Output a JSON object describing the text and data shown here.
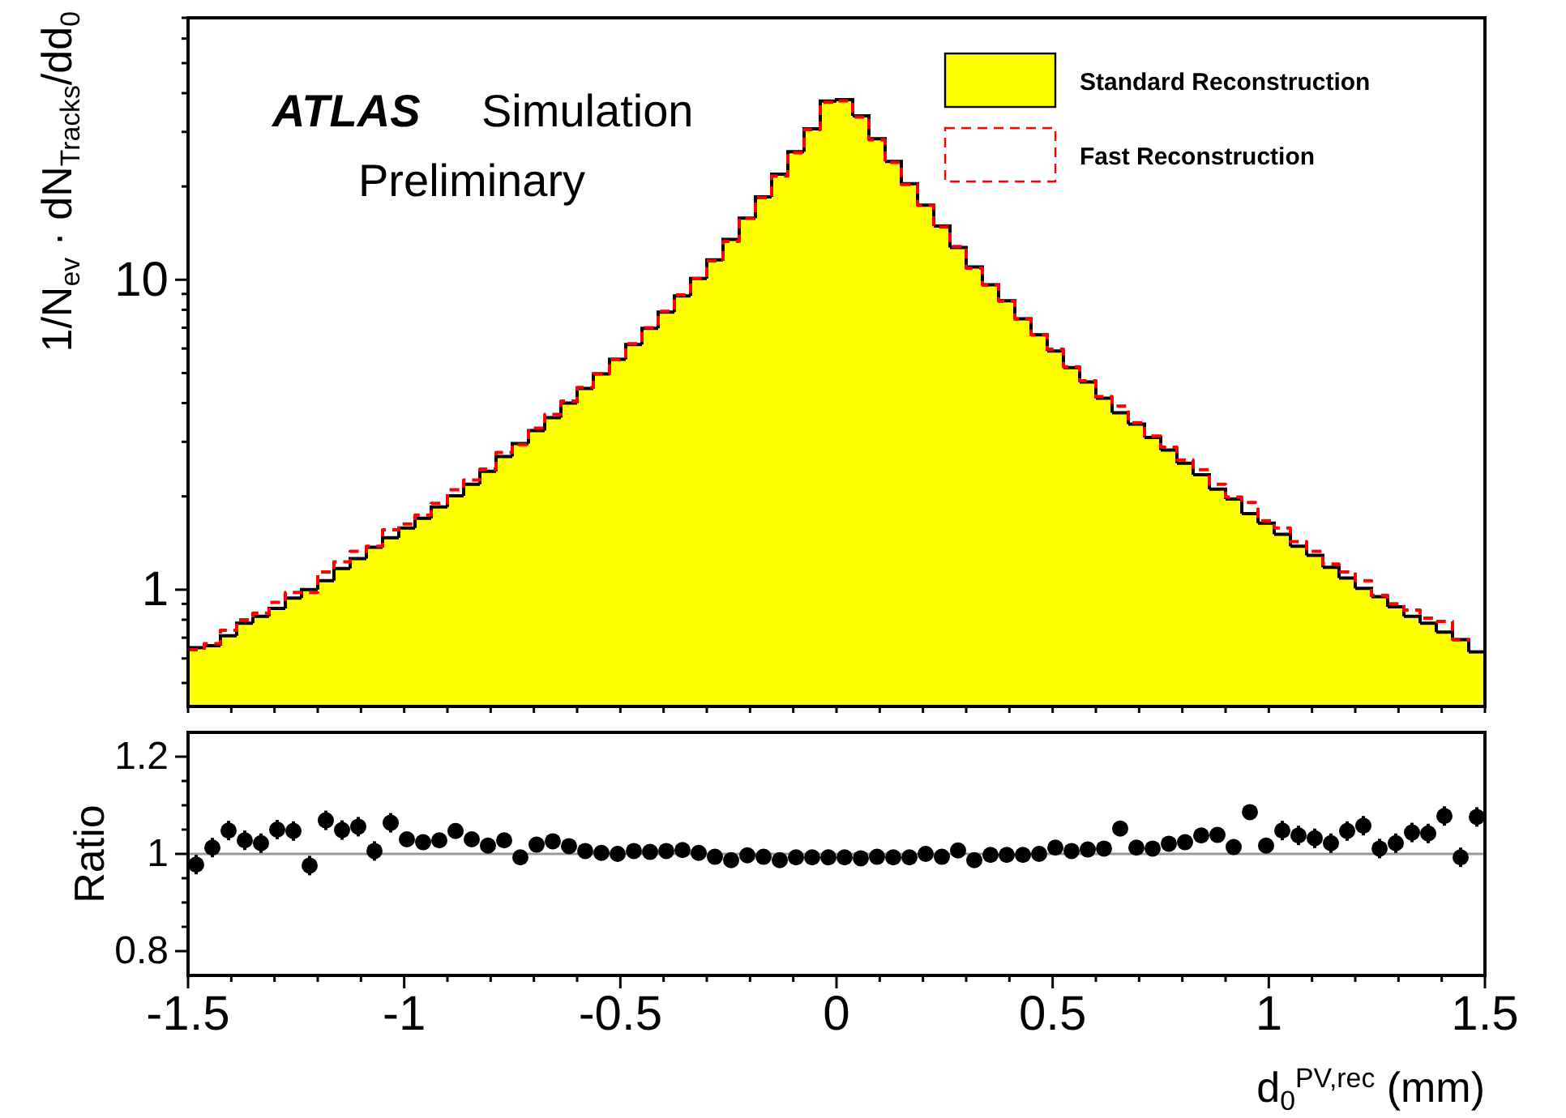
{
  "chart_data": [
    {
      "type": "histogram",
      "ylabel": "1/N$_{ev}$ · dN$_{Tracks}$/dd$_{0}$",
      "annotations": [
        "ATLAS",
        "Simulation",
        "Preliminary"
      ],
      "log": true,
      "legend": "top right",
      "tick_labels": "y",
      "xlim": [
        -1.5,
        1.5
      ],
      "xticks": [
        {
          "value": -1.5,
          "label": null
        },
        {
          "value": -1.4,
          "label": null
        },
        {
          "value": -1.3,
          "label": null
        },
        {
          "value": -1.2,
          "label": null
        },
        {
          "value": -1.1,
          "label": null
        },
        {
          "value": -1,
          "label": null
        },
        {
          "value": -0.9,
          "label": null
        },
        {
          "value": -0.8,
          "label": null
        },
        {
          "value": -0.7,
          "label": null
        },
        {
          "value": -0.6,
          "label": null
        },
        {
          "value": -0.5,
          "label": null
        },
        {
          "value": -0.4,
          "label": null
        },
        {
          "value": -0.3,
          "label": null
        },
        {
          "value": -0.2,
          "label": null
        },
        {
          "value": -0.1,
          "label": null
        },
        {
          "value": 0,
          "label": null
        },
        {
          "value": 0.1,
          "label": null
        },
        {
          "value": 0.2,
          "label": null
        },
        {
          "value": 0.3,
          "label": null
        },
        {
          "value": 0.4,
          "label": null
        },
        {
          "value": 0.5,
          "label": null
        },
        {
          "value": 0.6,
          "label": null
        },
        {
          "value": 0.7,
          "label": null
        },
        {
          "value": 0.8,
          "label": null
        },
        {
          "value": 0.9,
          "label": null
        },
        {
          "value": 1,
          "label": null
        },
        {
          "value": 1.1,
          "label": null
        },
        {
          "value": 1.2,
          "label": null
        },
        {
          "value": 1.3,
          "label": null
        },
        {
          "value": 1.4,
          "label": null
        },
        {
          "value": 1.5,
          "label": null
        }
      ],
      "ylim": [
        0.42,
        70
      ],
      "yticks": [
        {
          "value": 0.5,
          "label": null
        },
        {
          "value": 0.6,
          "label": null
        },
        {
          "value": 0.7,
          "label": null
        },
        {
          "value": 0.8,
          "label": null
        },
        {
          "value": 0.9,
          "label": null
        },
        1,
        {
          "value": 2,
          "label": null
        },
        {
          "value": 3,
          "label": null
        },
        {
          "value": 4,
          "label": null
        },
        {
          "value": 5,
          "label": null
        },
        {
          "value": 6,
          "label": null
        },
        {
          "value": 7,
          "label": null
        },
        {
          "value": 8,
          "label": null
        },
        {
          "value": 9,
          "label": null
        },
        10,
        {
          "value": 20,
          "label": null
        },
        {
          "value": 30,
          "label": null
        },
        {
          "value": 40,
          "label": null
        },
        {
          "value": 50,
          "label": null
        },
        {
          "value": 60,
          "label": null
        },
        {
          "value": 70,
          "label": null
        }
      ],
      "bins": [
        -1.5,
        -1.4625,
        -1.425,
        -1.3875,
        -1.35,
        -1.3125,
        -1.275,
        -1.2375,
        -1.2,
        -1.1625,
        -1.125,
        -1.0875,
        -1.05,
        -1.0125,
        -0.975,
        -0.9375,
        -0.9,
        -0.8625,
        -0.825,
        -0.7875,
        -0.75,
        -0.7125,
        -0.675,
        -0.6375,
        -0.6,
        -0.5625,
        -0.525,
        -0.4875,
        -0.45,
        -0.4125,
        -0.375,
        -0.3375,
        -0.3,
        -0.2625,
        -0.225,
        -0.1875,
        -0.15,
        -0.1125,
        -0.075,
        -0.0375,
        0,
        0.0375,
        0.075,
        0.1125,
        0.15,
        0.1875,
        0.225,
        0.2625,
        0.3,
        0.3375,
        0.375,
        0.4125,
        0.45,
        0.4875,
        0.525,
        0.5625,
        0.6,
        0.6375,
        0.675,
        0.7125,
        0.75,
        0.7875,
        0.825,
        0.8625,
        0.9,
        0.9375,
        0.975,
        1.0125,
        1.05,
        1.0875,
        1.125,
        1.1625,
        1.2,
        1.2375,
        1.275,
        1.3125,
        1.35,
        1.3875,
        1.425,
        1.4625,
        1.5
      ],
      "series": [
        {
          "name": "Standard Reconstruction",
          "type": "histogram",
          "color": "#ffff00",
          "values": [
            0.65,
            0.66,
            0.71,
            0.78,
            0.82,
            0.87,
            0.94,
            1.0,
            1.07,
            1.17,
            1.26,
            1.37,
            1.47,
            1.58,
            1.7,
            1.85,
            2.01,
            2.19,
            2.41,
            2.69,
            2.96,
            3.26,
            3.59,
            4.0,
            4.46,
            4.97,
            5.54,
            6.18,
            6.97,
            7.86,
            8.87,
            10.1,
            11.6,
            13.5,
            15.8,
            18.5,
            21.9,
            25.9,
            30.7,
            37.7,
            38.1,
            33.8,
            28.5,
            24.1,
            20.4,
            17.4,
            14.9,
            12.7,
            11.0,
            9.64,
            8.55,
            7.48,
            6.64,
            5.89,
            5.21,
            4.68,
            4.15,
            3.72,
            3.42,
            3.1,
            2.82,
            2.56,
            2.35,
            2.11,
            1.96,
            1.76,
            1.64,
            1.51,
            1.38,
            1.29,
            1.18,
            1.09,
            1.01,
            0.95,
            0.88,
            0.82,
            0.78,
            0.73,
            0.69,
            0.63
          ]
        },
        {
          "name": "Fast Reconstruction",
          "type": "step",
          "color": "#ff0000",
          "line_style": "dashed",
          "x": [
            -1.5,
            -1.4625,
            -1.425,
            -1.3875,
            -1.35,
            -1.3125,
            -1.275,
            -1.2375,
            -1.2,
            -1.1625,
            -1.125,
            -1.0875,
            -1.05,
            -1.0125,
            -0.975,
            -0.9375,
            -0.9,
            -0.8625,
            -0.825,
            -0.7875,
            -0.75,
            -0.7125,
            -0.675,
            -0.6375,
            -0.6,
            -0.5625,
            -0.525,
            -0.4875,
            -0.45,
            -0.4125,
            -0.375,
            -0.3375,
            -0.3,
            -0.2625,
            -0.225,
            -0.1875,
            -0.15,
            -0.1125,
            -0.075,
            -0.0375,
            0,
            0.0375,
            0.075,
            0.1125,
            0.15,
            0.1875,
            0.225,
            0.2625,
            0.3,
            0.3375,
            0.375,
            0.4125,
            0.45,
            0.4875,
            0.525,
            0.5625,
            0.6,
            0.6375,
            0.675,
            0.7125,
            0.75,
            0.7875,
            0.825,
            0.8625,
            0.9,
            0.9375,
            0.975,
            1.0125,
            1.05,
            1.0875,
            1.125,
            1.1625,
            1.2,
            1.2375,
            1.275,
            1.3125,
            1.35,
            1.3875,
            1.425,
            1.4625
          ],
          "values": [
            0.64,
            0.67,
            0.74,
            0.8,
            0.84,
            0.91,
            0.98,
            0.98,
            1.14,
            1.23,
            1.33,
            1.38,
            1.56,
            1.63,
            1.74,
            1.9,
            2.1,
            2.26,
            2.45,
            2.77,
            2.94,
            3.32,
            3.68,
            4.06,
            4.49,
            4.98,
            5.54,
            6.22,
            7.0,
            7.91,
            8.94,
            10.1,
            11.5,
            13.3,
            15.8,
            18.4,
            21.6,
            25.7,
            30.5,
            37.4,
            37.8,
            33.5,
            28.3,
            23.9,
            20.3,
            17.4,
            14.8,
            12.8,
            10.9,
            9.62,
            8.53,
            7.47,
            6.64,
            5.97,
            5.24,
            4.72,
            4.2,
            3.91,
            3.46,
            3.13,
            2.88,
            2.62,
            2.44,
            2.19,
            1.99,
            1.91,
            1.67,
            1.58,
            1.43,
            1.33,
            1.21,
            1.14,
            1.07,
            0.96,
            0.9,
            0.86,
            0.81,
            0.79,
            0.69,
            0.68
          ]
        }
      ]
    },
    {
      "type": "scatter",
      "xlabel": "d$_{0}$$^{PV,rec}$ (mm)",
      "ylabel": "Ratio",
      "marker": "circle",
      "xlim": [
        -1.5,
        1.5
      ],
      "xticks": [
        -1.5,
        {
          "value": -1.4,
          "label": null
        },
        {
          "value": -1.3,
          "label": null
        },
        {
          "value": -1.2,
          "label": null
        },
        {
          "value": -1.1,
          "label": null
        },
        -1,
        {
          "value": -0.9,
          "label": null
        },
        {
          "value": -0.8,
          "label": null
        },
        {
          "value": -0.7,
          "label": null
        },
        {
          "value": -0.6,
          "label": null
        },
        -0.5,
        {
          "value": -0.4,
          "label": null
        },
        {
          "value": -0.3,
          "label": null
        },
        {
          "value": -0.2,
          "label": null
        },
        {
          "value": -0.1,
          "label": null
        },
        0,
        {
          "value": 0.1,
          "label": null
        },
        {
          "value": 0.2,
          "label": null
        },
        {
          "value": 0.3,
          "label": null
        },
        {
          "value": 0.4,
          "label": null
        },
        0.5,
        {
          "value": 0.6,
          "label": null
        },
        {
          "value": 0.7,
          "label": null
        },
        {
          "value": 0.8,
          "label": null
        },
        {
          "value": 0.9,
          "label": null
        },
        1,
        {
          "value": 1.1,
          "label": null
        },
        {
          "value": 1.2,
          "label": null
        },
        {
          "value": 1.3,
          "label": null
        },
        {
          "value": 1.4,
          "label": null
        },
        1.5
      ],
      "ylim": [
        0.75,
        1.25
      ],
      "yticks": [
        0.8,
        {
          "value": 0.85,
          "label": null
        },
        {
          "value": 0.9,
          "label": null
        },
        {
          "value": 0.95,
          "label": null
        },
        1,
        {
          "value": 1.05,
          "label": null
        },
        {
          "value": 1.1,
          "label": null
        },
        {
          "value": 1.15,
          "label": null
        },
        1.2
      ],
      "ref_lines": [
        {
          "axis": "y",
          "value": 1,
          "color": "#999999"
        }
      ],
      "x": [
        -1.48125,
        -1.44375,
        -1.40625,
        -1.36875,
        -1.33125,
        -1.29375,
        -1.25625,
        -1.21875,
        -1.18125,
        -1.14375,
        -1.10625,
        -1.06875,
        -1.03125,
        -0.99375,
        -0.95625,
        -0.91875,
        -0.88125,
        -0.84375,
        -0.80625,
        -0.76875,
        -0.73125,
        -0.69375,
        -0.65625,
        -0.61875,
        -0.58125,
        -0.54375,
        -0.50625,
        -0.46875,
        -0.43125,
        -0.39375,
        -0.35625,
        -0.31875,
        -0.28125,
        -0.24375,
        -0.20625,
        -0.16875,
        -0.13125,
        -0.09375,
        -0.05625,
        -0.01875,
        0.01875,
        0.05625,
        0.09375,
        0.13125,
        0.16875,
        0.20625,
        0.24375,
        0.28125,
        0.31875,
        0.35625,
        0.39375,
        0.43125,
        0.46875,
        0.50625,
        0.54375,
        0.58125,
        0.61875,
        0.65625,
        0.69375,
        0.73125,
        0.76875,
        0.80625,
        0.84375,
        0.88125,
        0.91875,
        0.95625,
        0.99375,
        1.03125,
        1.06875,
        1.10625,
        1.14375,
        1.18125,
        1.21875,
        1.25625,
        1.29375,
        1.33125,
        1.36875,
        1.40625,
        1.44375,
        1.48125
      ],
      "values": [
        0.978,
        1.013,
        1.048,
        1.028,
        1.022,
        1.05,
        1.047,
        0.976,
        1.069,
        1.049,
        1.056,
        1.006,
        1.064,
        1.03,
        1.024,
        1.028,
        1.047,
        1.03,
        1.017,
        1.028,
        0.993,
        1.019,
        1.026,
        1.016,
        1.006,
        1.002,
        1.0,
        1.006,
        1.004,
        1.006,
        1.008,
        1.002,
        0.994,
        0.987,
        0.997,
        0.994,
        0.987,
        0.993,
        0.993,
        0.993,
        0.993,
        0.991,
        0.994,
        0.993,
        0.993,
        1.0,
        0.994,
        1.007,
        0.987,
        0.998,
        0.998,
        0.998,
        1.0,
        1.013,
        1.006,
        1.009,
        1.011,
        1.052,
        1.013,
        1.011,
        1.021,
        1.024,
        1.038,
        1.039,
        1.014,
        1.086,
        1.017,
        1.048,
        1.038,
        1.032,
        1.022,
        1.047,
        1.058,
        1.011,
        1.022,
        1.044,
        1.042,
        1.078,
        0.993,
        1.076
      ],
      "errors": [
        0.02,
        0.02,
        0.02,
        0.02,
        0.02,
        0.02,
        0.02,
        0.02,
        0.02,
        0.02,
        0.02,
        0.02,
        0.02,
        0.012,
        0.012,
        0.012,
        0.012,
        0.012,
        0.012,
        0.012,
        0.012,
        null,
        null,
        null,
        null,
        null,
        null,
        null,
        null,
        null,
        null,
        null,
        null,
        null,
        null,
        null,
        null,
        null,
        null,
        null,
        null,
        null,
        null,
        null,
        null,
        null,
        null,
        null,
        null,
        null,
        null,
        null,
        null,
        null,
        null,
        null,
        null,
        null,
        null,
        0.012,
        0.012,
        0.012,
        0.012,
        0.012,
        0.012,
        0.012,
        0.012,
        0.02,
        0.02,
        0.02,
        0.02,
        0.02,
        0.02,
        0.02,
        0.02,
        0.02,
        0.02,
        0.02,
        0.02,
        0.02
      ]
    }
  ]
}
